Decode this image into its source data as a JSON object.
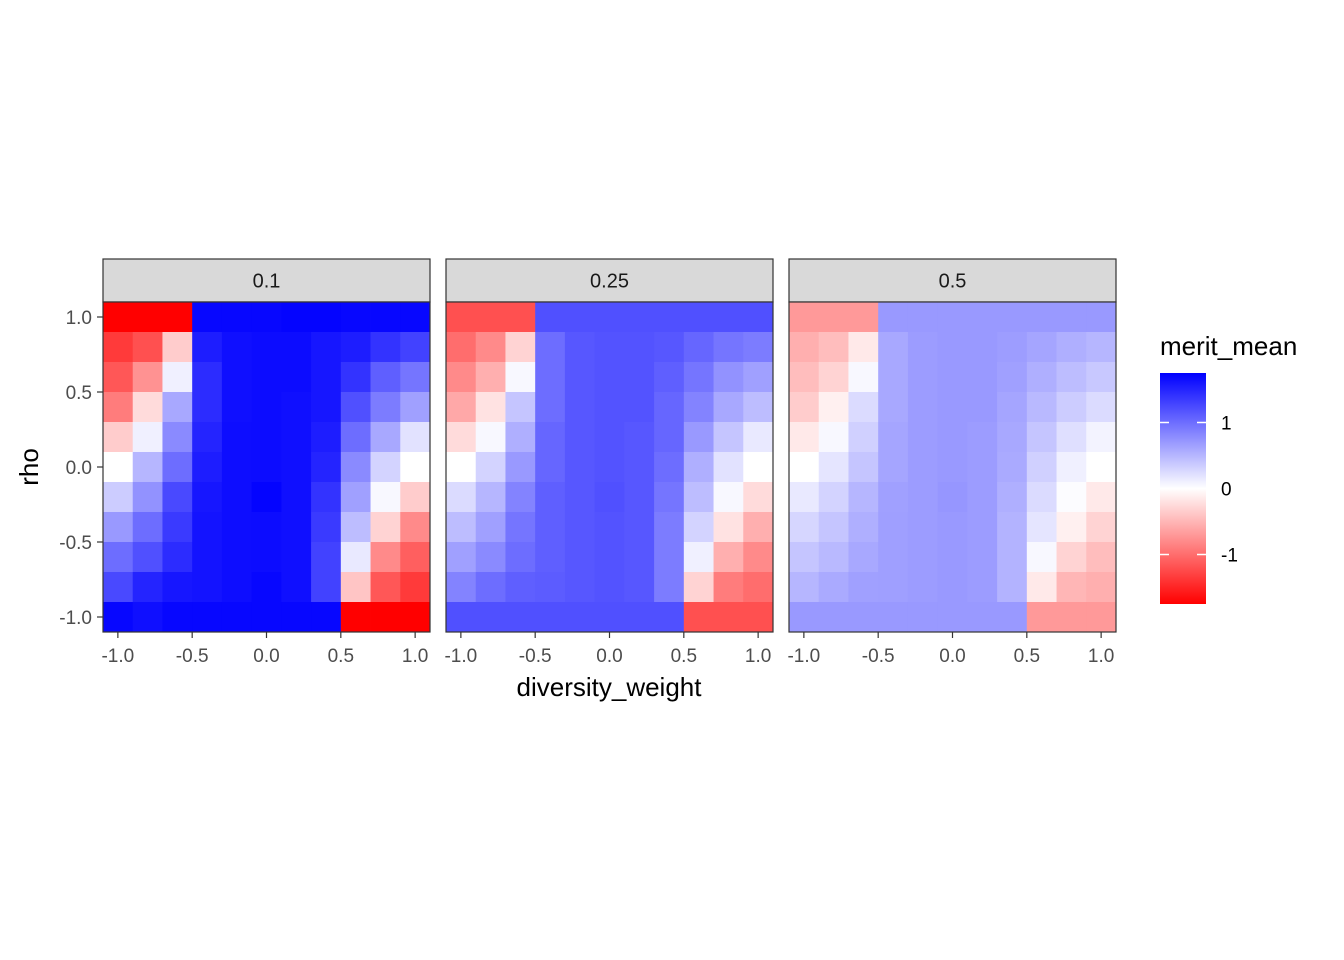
{
  "chart_data": {
    "type": "heatmap",
    "facet_labels": [
      "0.1",
      "0.25",
      "0.5"
    ],
    "xlabel": "diversity_weight",
    "ylabel": "rho",
    "x": [
      -1.0,
      -0.8,
      -0.6,
      -0.4,
      -0.2,
      0.0,
      0.2,
      0.4,
      0.6,
      0.8,
      1.0
    ],
    "y": [
      1.0,
      0.8,
      0.6,
      0.4,
      0.2,
      0.0,
      -0.2,
      -0.4,
      -0.6,
      -0.8,
      -1.0
    ],
    "x_ticks": [
      -1.0,
      -0.5,
      0.0,
      0.5,
      1.0
    ],
    "x_tick_labels": [
      "-1.0",
      "-0.5",
      "0.0",
      "0.5",
      "1.0"
    ],
    "y_ticks": [
      1.0,
      0.5,
      0.0,
      -0.5,
      -1.0
    ],
    "y_tick_labels": [
      "1.0",
      "0.5",
      "0.0",
      "-0.5",
      "-1.0"
    ],
    "xlim": [
      -1.1,
      1.1
    ],
    "ylim": [
      -1.1,
      1.1
    ],
    "legend": {
      "title": "merit_mean",
      "ticks": [
        1,
        0,
        -1
      ],
      "tick_labels": [
        "1",
        "0",
        "-1"
      ],
      "range": [
        -1.75,
        1.75
      ],
      "low_color": "#ff0000",
      "mid_color": "#ffffff",
      "high_color": "#0000ff",
      "placement": "right"
    },
    "series": [
      {
        "facet": "0.1",
        "values": [
          [
            -1.75,
            -1.75,
            -1.75,
            1.7,
            1.7,
            1.7,
            1.72,
            1.72,
            1.7,
            1.7,
            1.7
          ],
          [
            -1.35,
            -1.2,
            -0.35,
            1.55,
            1.65,
            1.67,
            1.67,
            1.6,
            1.55,
            1.4,
            1.3
          ],
          [
            -1.15,
            -0.75,
            0.1,
            1.45,
            1.65,
            1.67,
            1.67,
            1.6,
            1.4,
            1.1,
            0.95
          ],
          [
            -0.9,
            -0.25,
            0.6,
            1.45,
            1.65,
            1.67,
            1.65,
            1.6,
            1.2,
            0.9,
            0.65
          ],
          [
            -0.35,
            0.1,
            0.8,
            1.5,
            1.66,
            1.67,
            1.65,
            1.55,
            1.0,
            0.6,
            0.2
          ],
          [
            0.0,
            0.5,
            1.0,
            1.55,
            1.66,
            1.67,
            1.65,
            1.5,
            0.8,
            0.3,
            0.0
          ],
          [
            0.35,
            0.75,
            1.25,
            1.6,
            1.66,
            1.72,
            1.65,
            1.4,
            0.65,
            0.05,
            -0.35
          ],
          [
            0.7,
            1.0,
            1.35,
            1.62,
            1.66,
            1.67,
            1.65,
            1.35,
            0.45,
            -0.3,
            -0.8
          ],
          [
            1.0,
            1.2,
            1.45,
            1.62,
            1.66,
            1.67,
            1.65,
            1.3,
            0.15,
            -0.8,
            -1.1
          ],
          [
            1.25,
            1.5,
            1.6,
            1.62,
            1.66,
            1.7,
            1.65,
            1.3,
            -0.4,
            -1.15,
            -1.35
          ],
          [
            1.7,
            1.65,
            1.7,
            1.7,
            1.7,
            1.7,
            1.7,
            1.7,
            -1.75,
            -1.75,
            -1.75
          ]
        ]
      },
      {
        "facet": "0.25",
        "values": [
          [
            -1.2,
            -1.2,
            -1.2,
            1.2,
            1.2,
            1.2,
            1.2,
            1.2,
            1.2,
            1.2,
            1.2
          ],
          [
            -1.0,
            -0.8,
            -0.3,
            1.0,
            1.15,
            1.18,
            1.18,
            1.15,
            1.05,
            0.95,
            0.9
          ],
          [
            -0.8,
            -0.55,
            0.05,
            1.0,
            1.15,
            1.18,
            1.18,
            1.1,
            0.95,
            0.75,
            0.65
          ],
          [
            -0.6,
            -0.2,
            0.4,
            1.0,
            1.15,
            1.18,
            1.18,
            1.05,
            0.85,
            0.6,
            0.45
          ],
          [
            -0.25,
            0.05,
            0.55,
            1.05,
            1.15,
            1.18,
            1.15,
            1.05,
            0.7,
            0.4,
            0.15
          ],
          [
            0.0,
            0.3,
            0.7,
            1.05,
            1.15,
            1.18,
            1.15,
            1.0,
            0.55,
            0.2,
            0.0
          ],
          [
            0.25,
            0.5,
            0.85,
            1.1,
            1.15,
            1.2,
            1.15,
            0.95,
            0.45,
            0.05,
            -0.25
          ],
          [
            0.45,
            0.65,
            0.95,
            1.1,
            1.15,
            1.18,
            1.15,
            0.9,
            0.3,
            -0.2,
            -0.55
          ],
          [
            0.65,
            0.8,
            1.0,
            1.1,
            1.15,
            1.18,
            1.15,
            0.9,
            0.1,
            -0.55,
            -0.8
          ],
          [
            0.85,
            1.0,
            1.1,
            1.12,
            1.15,
            1.18,
            1.15,
            0.9,
            -0.3,
            -0.9,
            -1.0
          ],
          [
            1.2,
            1.2,
            1.2,
            1.2,
            1.2,
            1.2,
            1.2,
            1.2,
            -1.2,
            -1.2,
            -1.2
          ]
        ]
      },
      {
        "facet": "0.5",
        "values": [
          [
            -0.7,
            -0.7,
            -0.7,
            0.7,
            0.7,
            0.7,
            0.7,
            0.7,
            0.7,
            0.7,
            0.7
          ],
          [
            -0.55,
            -0.45,
            -0.15,
            0.6,
            0.68,
            0.7,
            0.7,
            0.67,
            0.62,
            0.55,
            0.5
          ],
          [
            -0.45,
            -0.3,
            0.05,
            0.6,
            0.68,
            0.7,
            0.7,
            0.65,
            0.55,
            0.45,
            0.38
          ],
          [
            -0.35,
            -0.1,
            0.25,
            0.6,
            0.68,
            0.7,
            0.7,
            0.62,
            0.48,
            0.35,
            0.25
          ],
          [
            -0.15,
            0.05,
            0.32,
            0.62,
            0.68,
            0.7,
            0.68,
            0.6,
            0.4,
            0.22,
            0.08
          ],
          [
            0.0,
            0.18,
            0.4,
            0.62,
            0.68,
            0.7,
            0.68,
            0.58,
            0.32,
            0.1,
            0.0
          ],
          [
            0.15,
            0.3,
            0.5,
            0.65,
            0.68,
            0.72,
            0.68,
            0.55,
            0.25,
            0.02,
            -0.15
          ],
          [
            0.28,
            0.4,
            0.55,
            0.66,
            0.68,
            0.7,
            0.68,
            0.52,
            0.18,
            -0.1,
            -0.3
          ],
          [
            0.4,
            0.48,
            0.6,
            0.66,
            0.68,
            0.7,
            0.68,
            0.52,
            0.05,
            -0.3,
            -0.45
          ],
          [
            0.5,
            0.58,
            0.65,
            0.66,
            0.68,
            0.7,
            0.68,
            0.52,
            -0.15,
            -0.5,
            -0.55
          ],
          [
            0.7,
            0.7,
            0.7,
            0.7,
            0.7,
            0.7,
            0.7,
            0.7,
            -0.7,
            -0.7,
            -0.7
          ]
        ]
      }
    ]
  }
}
